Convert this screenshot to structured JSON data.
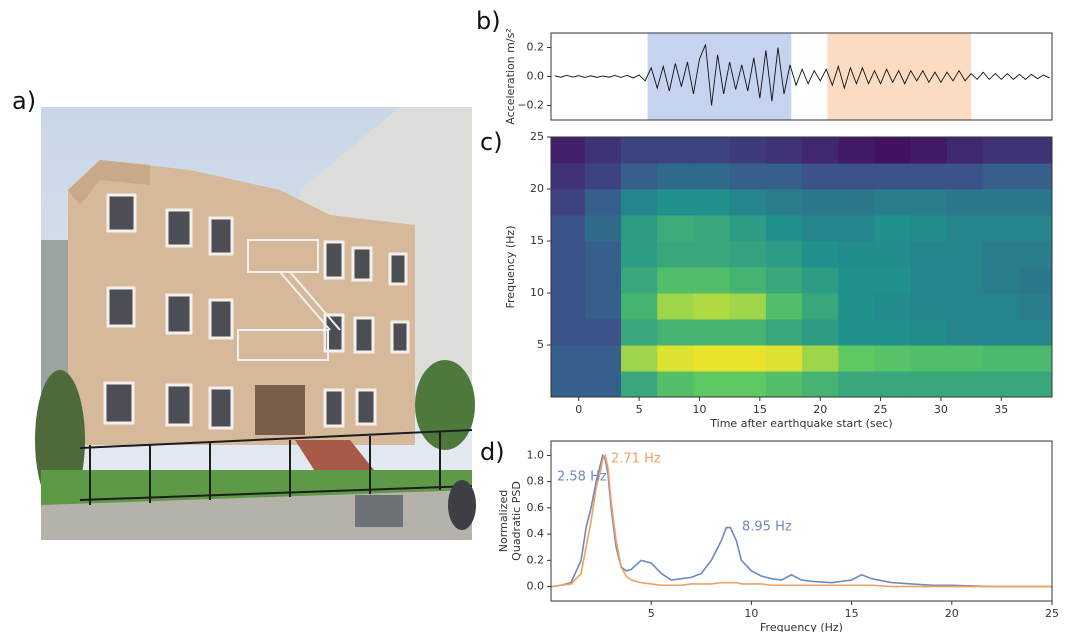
{
  "panel_labels": [
    "a)",
    "b)",
    "c)",
    "d)"
  ],
  "chart_data": [
    {
      "type": "line",
      "ylabel": "Acceleration m/s²",
      "xlim": [
        -2.3,
        39.2
      ],
      "ylim": [
        -0.3,
        0.3
      ],
      "yticks": [
        {
          "value": -0.2,
          "label": "−0.2"
        },
        {
          "value": 0,
          "label": "0.0"
        },
        0.2
      ],
      "spans": [
        {
          "x": [
            5.7,
            17.6
          ],
          "color": "#c5d3ef"
        },
        {
          "x": [
            20.6,
            32.5
          ],
          "color": "#fbdcc3"
        }
      ],
      "x": [
        -2,
        -1.5,
        -1,
        -0.5,
        0,
        0.5,
        1,
        1.5,
        2,
        2.5,
        3,
        3.5,
        4,
        4.5,
        5,
        5.5,
        6,
        6.5,
        7,
        7.5,
        8,
        8.5,
        9,
        9.5,
        10,
        10.5,
        11,
        11.5,
        12,
        12.5,
        13,
        13.5,
        14,
        14.5,
        15,
        15.5,
        16,
        16.5,
        17,
        17.5,
        18,
        18.5,
        19,
        19.5,
        20,
        20.5,
        21,
        21.5,
        22,
        22.5,
        23,
        23.5,
        24,
        24.5,
        25,
        25.5,
        26,
        26.5,
        27,
        27.5,
        28,
        28.5,
        29,
        29.5,
        30,
        30.5,
        31,
        31.5,
        32,
        32.5,
        33,
        33.5,
        34,
        34.5,
        35,
        35.5,
        36,
        36.5,
        37,
        37.5,
        38,
        38.5,
        39
      ],
      "series": [
        {
          "color": "#111111",
          "values": [
            0.005,
            -0.005,
            0.008,
            -0.004,
            0.006,
            -0.007,
            0.005,
            -0.006,
            0.004,
            -0.005,
            0.007,
            -0.006,
            0.008,
            -0.01,
            0.01,
            -0.03,
            0.06,
            -0.08,
            0.07,
            -0.1,
            0.09,
            -0.07,
            0.1,
            -0.12,
            0.12,
            0.22,
            -0.2,
            0.15,
            -0.12,
            0.1,
            -0.09,
            0.08,
            -0.1,
            0.13,
            -0.15,
            0.18,
            -0.17,
            0.2,
            -0.12,
            0.08,
            -0.06,
            0.05,
            -0.05,
            0.04,
            -0.03,
            0.05,
            -0.06,
            0.07,
            -0.08,
            0.06,
            -0.05,
            0.06,
            -0.05,
            0.04,
            -0.05,
            0.05,
            -0.04,
            0.04,
            -0.05,
            0.04,
            -0.03,
            0.04,
            -0.04,
            0.03,
            -0.04,
            0.03,
            -0.03,
            0.04,
            -0.03,
            0.02,
            -0.02,
            0.03,
            -0.02,
            0.02,
            -0.02,
            0.02,
            -0.02,
            0.015,
            -0.02,
            0.015,
            -0.015,
            0.01,
            -0.01
          ]
        }
      ]
    },
    {
      "type": "heatmap",
      "xlabel": "Time after earthquake start (sec)",
      "ylabel": "Frequency (Hz)",
      "xlim": [
        -2.3,
        39.2
      ],
      "ylim": [
        0,
        25
      ],
      "xticks": [
        0,
        5,
        10,
        15,
        20,
        25,
        30,
        35
      ],
      "yticks": [
        5,
        10,
        15,
        20,
        25
      ],
      "colormap": "viridis",
      "x": [
        -1,
        2,
        5,
        8,
        11,
        14,
        17,
        20,
        23,
        26,
        29,
        32,
        35,
        38
      ],
      "y": [
        1.25,
        3.75,
        6.25,
        8.75,
        11.25,
        13.75,
        16.25,
        18.75,
        21.25,
        23.75
      ],
      "z": [
        [
          0.3,
          0.3,
          0.6,
          0.7,
          0.75,
          0.75,
          0.7,
          0.65,
          0.6,
          0.6,
          0.6,
          0.6,
          0.6,
          0.6
        ],
        [
          0.3,
          0.3,
          0.85,
          0.95,
          0.97,
          0.97,
          0.95,
          0.85,
          0.75,
          0.72,
          0.7,
          0.7,
          0.68,
          0.68
        ],
        [
          0.25,
          0.25,
          0.6,
          0.65,
          0.65,
          0.65,
          0.6,
          0.55,
          0.5,
          0.5,
          0.48,
          0.45,
          0.45,
          0.45
        ],
        [
          0.25,
          0.3,
          0.65,
          0.85,
          0.88,
          0.85,
          0.7,
          0.6,
          0.5,
          0.48,
          0.45,
          0.45,
          0.45,
          0.42
        ],
        [
          0.25,
          0.3,
          0.6,
          0.7,
          0.7,
          0.65,
          0.6,
          0.55,
          0.5,
          0.5,
          0.45,
          0.45,
          0.42,
          0.4
        ],
        [
          0.25,
          0.3,
          0.55,
          0.6,
          0.6,
          0.58,
          0.55,
          0.5,
          0.48,
          0.48,
          0.45,
          0.45,
          0.42,
          0.42
        ],
        [
          0.25,
          0.35,
          0.55,
          0.62,
          0.6,
          0.55,
          0.5,
          0.45,
          0.45,
          0.5,
          0.48,
          0.45,
          0.45,
          0.45
        ],
        [
          0.2,
          0.3,
          0.45,
          0.5,
          0.5,
          0.45,
          0.42,
          0.4,
          0.4,
          0.42,
          0.42,
          0.4,
          0.4,
          0.4
        ],
        [
          0.15,
          0.2,
          0.3,
          0.35,
          0.35,
          0.3,
          0.3,
          0.25,
          0.25,
          0.25,
          0.25,
          0.25,
          0.3,
          0.3
        ],
        [
          0.1,
          0.15,
          0.2,
          0.2,
          0.2,
          0.18,
          0.15,
          0.12,
          0.08,
          0.05,
          0.08,
          0.12,
          0.15,
          0.15
        ]
      ]
    },
    {
      "type": "line",
      "xlabel": "Frequency (Hz)",
      "ylabel": [
        "Normalized",
        "Quadratic PSD"
      ],
      "xlim": [
        0,
        25
      ],
      "ylim": [
        -0.11,
        1.11
      ],
      "xticks": [
        5,
        10,
        15,
        20,
        25
      ],
      "yticks": [
        {
          "value": 0,
          "label": "0.0"
        },
        0.2,
        0.4,
        0.6,
        0.8,
        {
          "value": 1,
          "label": "1.0"
        }
      ],
      "annotations": [
        {
          "text": "2.58 Hz",
          "color": "#6f88c0"
        },
        {
          "text": "2.71 Hz",
          "color": "#f0a060"
        },
        {
          "text": "8.95 Hz",
          "color": "#6f88c0"
        }
      ],
      "x": [
        0,
        0.5,
        1,
        1.5,
        1.75,
        2,
        2.25,
        2.5,
        2.58,
        2.71,
        2.85,
        3,
        3.25,
        3.5,
        3.75,
        4,
        4.5,
        5,
        5.5,
        6,
        6.5,
        7,
        7.5,
        8,
        8.5,
        8.75,
        8.95,
        9.25,
        9.5,
        10,
        10.5,
        11,
        11.5,
        12,
        12.5,
        13,
        14,
        15,
        15.5,
        16,
        17,
        18,
        19,
        20,
        22,
        25
      ],
      "series": [
        {
          "color": "#6f88c0",
          "values": [
            0,
            0.01,
            0.03,
            0.2,
            0.45,
            0.6,
            0.8,
            0.95,
            1,
            0.97,
            0.85,
            0.6,
            0.3,
            0.15,
            0.12,
            0.13,
            0.2,
            0.18,
            0.1,
            0.05,
            0.06,
            0.07,
            0.1,
            0.2,
            0.35,
            0.45,
            0.45,
            0.35,
            0.2,
            0.12,
            0.08,
            0.06,
            0.05,
            0.09,
            0.05,
            0.04,
            0.03,
            0.05,
            0.09,
            0.06,
            0.03,
            0.02,
            0.01,
            0.01,
            0,
            0
          ]
        },
        {
          "color": "#f0a060",
          "values": [
            0,
            0.01,
            0.02,
            0.1,
            0.3,
            0.5,
            0.75,
            0.9,
            0.97,
            1,
            0.9,
            0.65,
            0.35,
            0.15,
            0.08,
            0.05,
            0.03,
            0.02,
            0.01,
            0.01,
            0.01,
            0.02,
            0.02,
            0.02,
            0.03,
            0.03,
            0.03,
            0.03,
            0.02,
            0.02,
            0.02,
            0.01,
            0.01,
            0.01,
            0.01,
            0.01,
            0.01,
            0.01,
            0.01,
            0.01,
            0,
            0,
            0,
            0,
            0,
            0
          ]
        }
      ]
    }
  ]
}
